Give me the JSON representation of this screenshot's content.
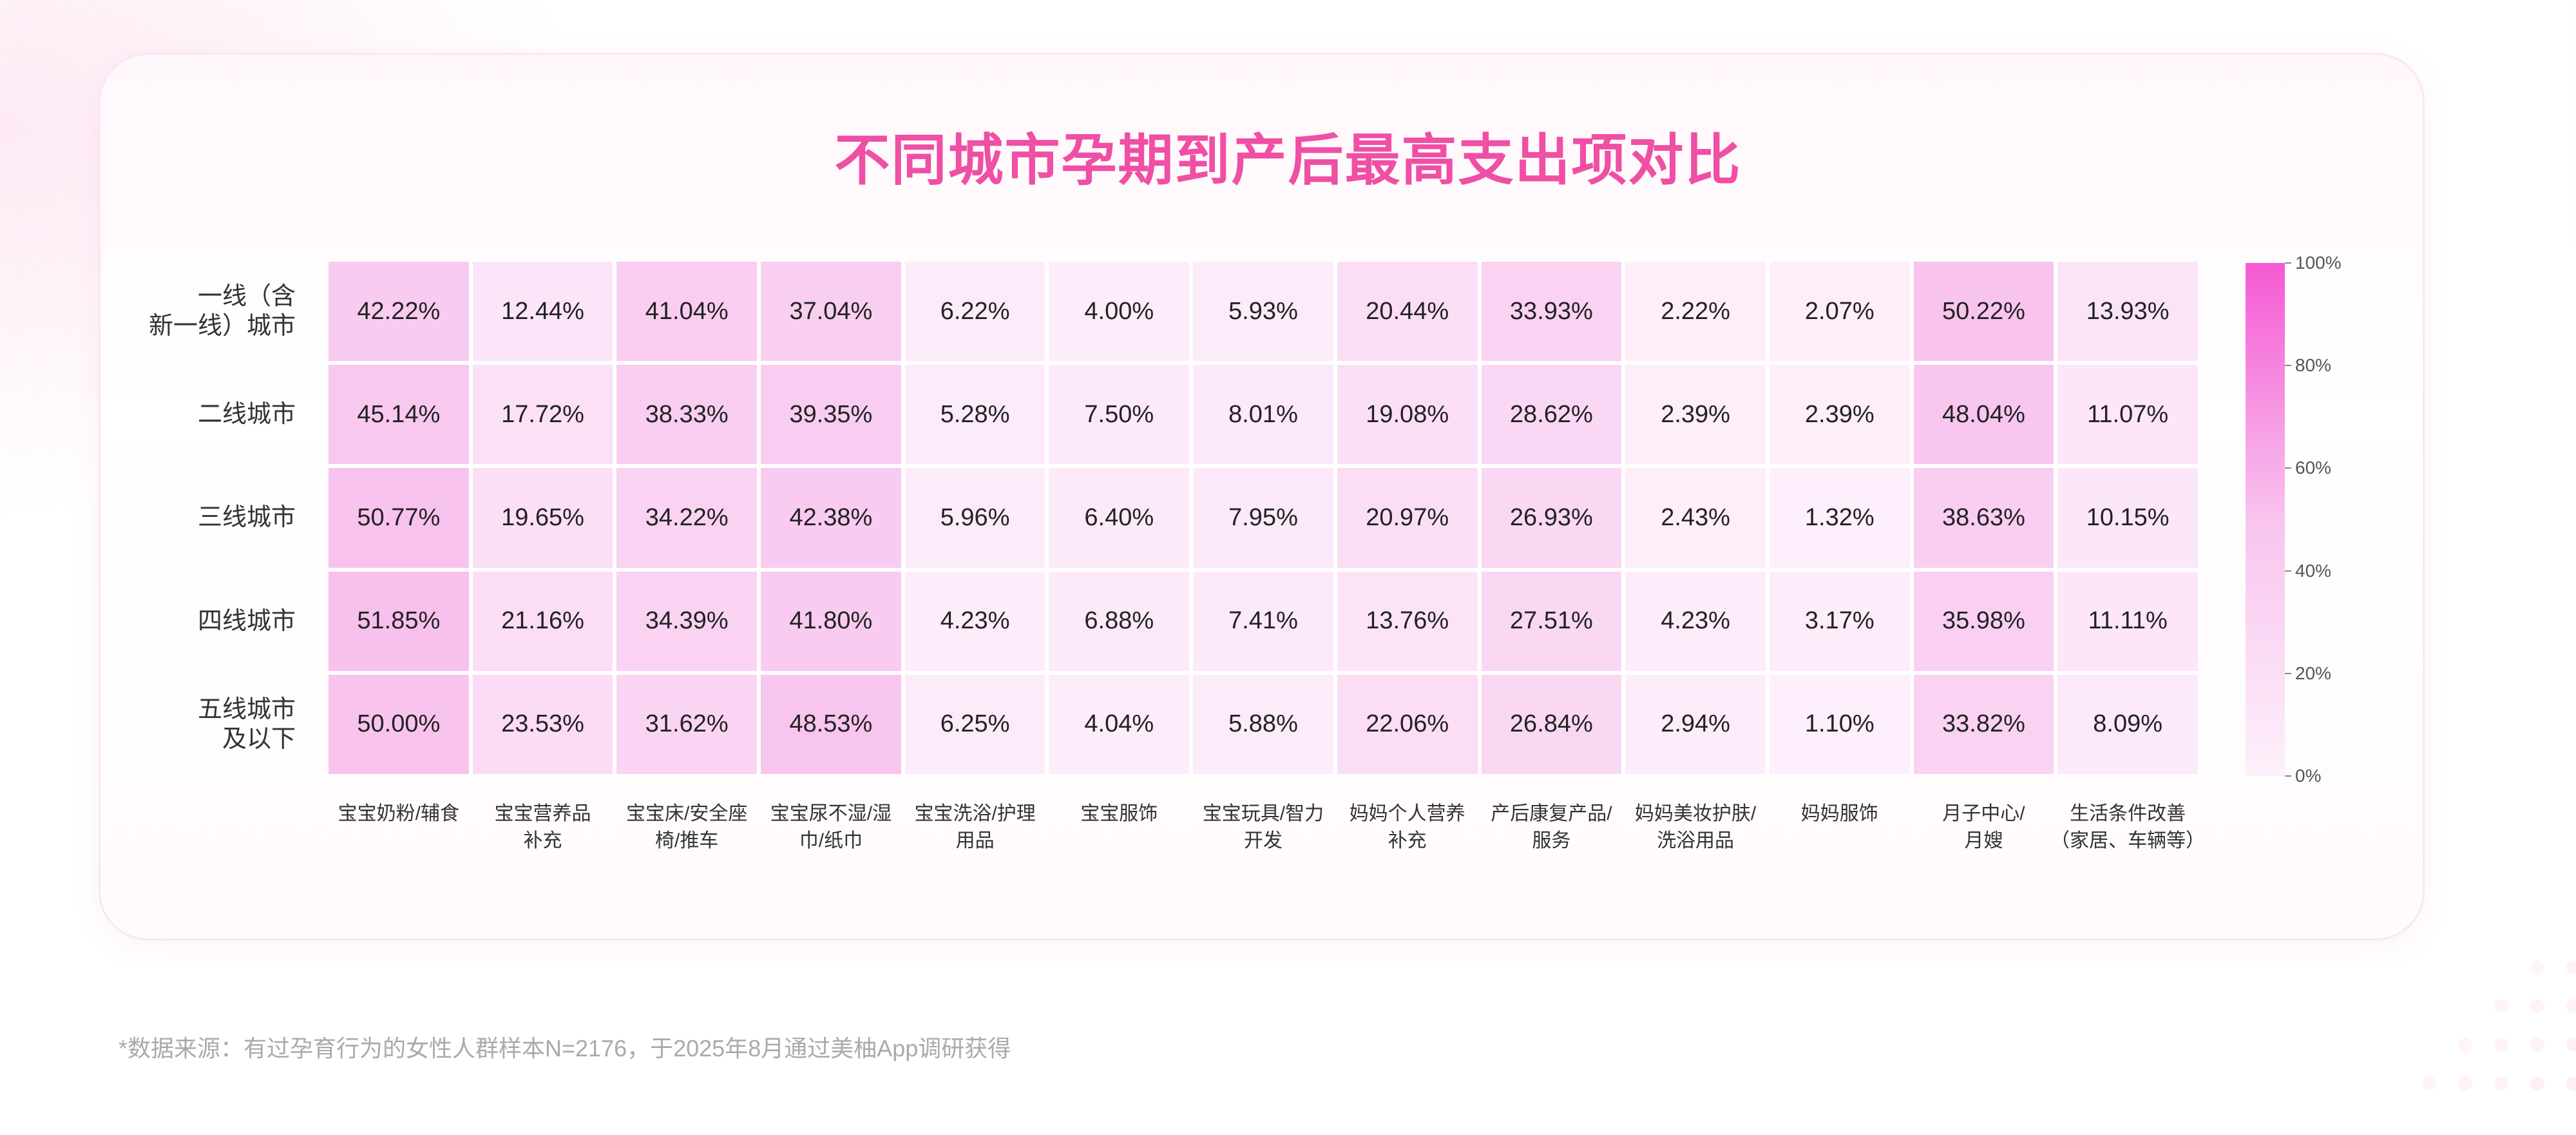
{
  "chart_data": {
    "type": "heatmap",
    "title": "不同城市孕期到产后最高支出项对比",
    "y_categories": [
      "一线（含\n新一线）城市",
      "二线城市",
      "三线城市",
      "四线城市",
      "五线城市\n及以下"
    ],
    "x_categories": [
      "宝宝奶粉/辅食",
      "宝宝营养品\n补充",
      "宝宝床/安全座\n椅/推车",
      "宝宝尿不湿/湿\n巾/纸巾",
      "宝宝洗浴/护理\n用品",
      "宝宝服饰",
      "宝宝玩具/智力\n开发",
      "妈妈个人营养\n补充",
      "产后康复产品/\n服务",
      "妈妈美妆护肤/\n洗浴用品",
      "妈妈服饰",
      "月子中心/\n月嫂",
      "生活条件改善\n（家居、车辆等）"
    ],
    "values": [
      [
        42.22,
        12.44,
        41.04,
        37.04,
        6.22,
        4.0,
        5.93,
        20.44,
        33.93,
        2.22,
        2.07,
        50.22,
        13.93
      ],
      [
        45.14,
        17.72,
        38.33,
        39.35,
        5.28,
        7.5,
        8.01,
        19.08,
        28.62,
        2.39,
        2.39,
        48.04,
        11.07
      ],
      [
        50.77,
        19.65,
        34.22,
        42.38,
        5.96,
        6.4,
        7.95,
        20.97,
        26.93,
        2.43,
        1.32,
        38.63,
        10.15
      ],
      [
        51.85,
        21.16,
        34.39,
        41.8,
        4.23,
        6.88,
        7.41,
        13.76,
        27.51,
        4.23,
        3.17,
        35.98,
        11.11
      ],
      [
        50.0,
        23.53,
        31.62,
        48.53,
        6.25,
        4.04,
        5.88,
        22.06,
        26.84,
        2.94,
        1.1,
        33.82,
        8.09
      ]
    ],
    "value_labels": [
      [
        "42.22%",
        "12.44%",
        "41.04%",
        "37.04%",
        "6.22%",
        "4.00%",
        "5.93%",
        "20.44%",
        "33.93%",
        "2.22%",
        "2.07%",
        "50.22%",
        "13.93%"
      ],
      [
        "45.14%",
        "17.72%",
        "38.33%",
        "39.35%",
        "5.28%",
        "7.50%",
        "8.01%",
        "19.08%",
        "28.62%",
        "2.39%",
        "2.39%",
        "48.04%",
        "11.07%"
      ],
      [
        "50.77%",
        "19.65%",
        "34.22%",
        "42.38%",
        "5.96%",
        "6.40%",
        "7.95%",
        "20.97%",
        "26.93%",
        "2.43%",
        "1.32%",
        "38.63%",
        "10.15%"
      ],
      [
        "51.85%",
        "21.16%",
        "34.39%",
        "41.80%",
        "4.23%",
        "6.88%",
        "7.41%",
        "13.76%",
        "27.51%",
        "4.23%",
        "3.17%",
        "35.98%",
        "11.11%"
      ],
      [
        "50.00%",
        "23.53%",
        "31.62%",
        "48.53%",
        "6.25%",
        "4.04%",
        "5.88%",
        "22.06%",
        "26.84%",
        "2.94%",
        "1.10%",
        "33.82%",
        "8.09%"
      ]
    ],
    "zlim": [
      0,
      100
    ],
    "zticks": [
      {
        "value": 0,
        "label": "0%"
      },
      {
        "value": 20,
        "label": "20%"
      },
      {
        "value": 40,
        "label": "40%"
      },
      {
        "value": 60,
        "label": "60%"
      },
      {
        "value": 80,
        "label": "80%"
      },
      {
        "value": 100,
        "label": "100%"
      }
    ],
    "colors": [
      "#fdf0fb",
      "#f8c4ee",
      "#f559d4"
    ],
    "source": "*数据来源：有过孕育行为的女性人群样本N=2176，于2025年8月通过美柚App调研获得"
  }
}
